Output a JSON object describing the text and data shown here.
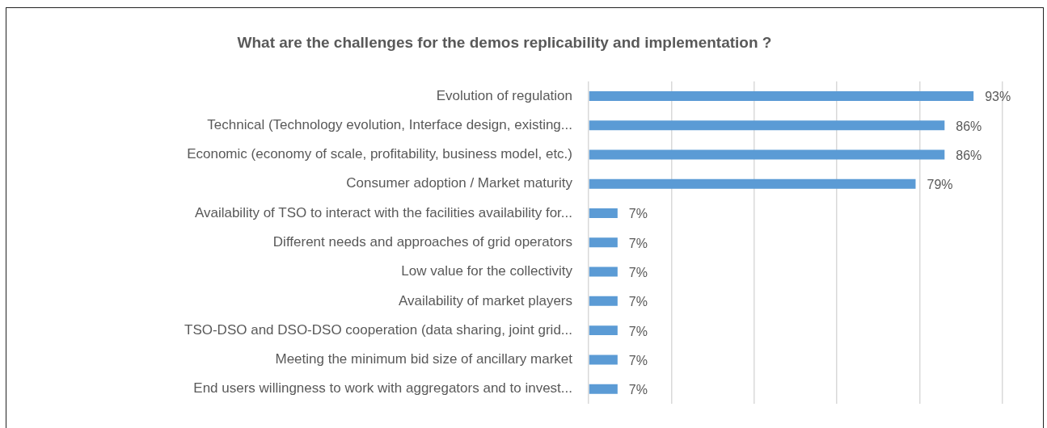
{
  "chart_data": {
    "type": "bar",
    "orientation": "horizontal",
    "title": "What are the challenges for the demos replicability and implementation ?",
    "categories": [
      "Evolution of regulation",
      "Technical (Technology evolution, Interface design, existing...",
      "Economic (economy of scale, profitability, business model, etc.)",
      "Consumer adoption / Market maturity",
      "Availability of TSO to interact with the facilities availability for...",
      "Different needs and approaches of grid operators",
      "Low value for the collectivity",
      "Availability of market players",
      "TSO-DSO and DSO-DSO cooperation (data sharing, joint grid...",
      "Meeting the minimum bid size of ancillary market",
      "End users willingness to work with aggregators and to invest..."
    ],
    "values": [
      93,
      86,
      86,
      79,
      7,
      7,
      7,
      7,
      7,
      7,
      7
    ],
    "value_labels": [
      "93%",
      "86%",
      "86%",
      "79%",
      "7%",
      "7%",
      "7%",
      "7%",
      "7%",
      "7%",
      "7%"
    ],
    "color": "#5b9bd5",
    "xlim": [
      0,
      100
    ],
    "xticks": [
      {
        "value": 0,
        "label": null
      },
      {
        "value": 20,
        "label": null
      },
      {
        "value": 40,
        "label": null
      },
      {
        "value": 60,
        "label": null
      },
      {
        "value": 80,
        "label": null
      },
      {
        "value": 100,
        "label": null
      }
    ],
    "grid": "x",
    "tick_labels": "y",
    "legend": false
  }
}
